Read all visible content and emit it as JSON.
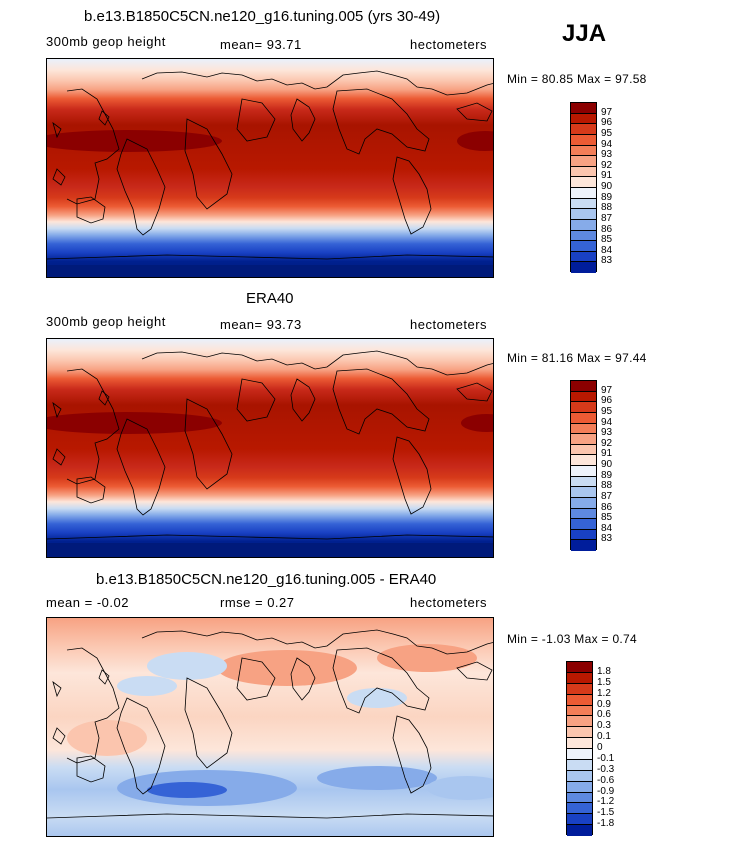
{
  "season": "JJA",
  "panels": [
    {
      "title": "b.e13.B1850C5CN.ne120_g16.tuning.005 (yrs 30-49)",
      "left_label": "300mb geop height",
      "mid_label": "mean=  93.71",
      "right_label": "hectometers",
      "minmax": "Min =  80.85 Max =  97.58"
    },
    {
      "title": "ERA40",
      "left_label": "300mb geop height",
      "mid_label": "mean=  93.73",
      "right_label": "hectometers",
      "minmax": "Min =  81.16 Max =  97.44"
    },
    {
      "title": "b.e13.B1850C5CN.ne120_g16.tuning.005 - ERA40",
      "left_label": "mean =  -0.02",
      "mid_label": "rmse =   0.27",
      "right_label": "hectometers",
      "minmax": "Min =  -1.03 Max =   0.74"
    }
  ],
  "colorbars": {
    "field": {
      "labels": [
        "97",
        "96",
        "95",
        "94",
        "93",
        "92",
        "91",
        "90",
        "89",
        "88",
        "87",
        "86",
        "85",
        "84",
        "83"
      ],
      "colors": [
        "#8b0000",
        "#b81800",
        "#d63a1a",
        "#ec5b34",
        "#f37e58",
        "#f7a283",
        "#fbc5ae",
        "#fde6da",
        "#eef3fb",
        "#c9dcf3",
        "#a9c6ef",
        "#86abe9",
        "#5e89e0",
        "#3563d6",
        "#1941c4",
        "#001d9b"
      ]
    },
    "diff": {
      "labels": [
        "1.8",
        "1.5",
        "1.2",
        "0.9",
        "0.6",
        "0.3",
        "0.1",
        "0",
        "-0.1",
        "-0.3",
        "-0.6",
        "-0.9",
        "-1.2",
        "-1.5",
        "-1.8"
      ],
      "colors": [
        "#8b0000",
        "#b81800",
        "#d63a1a",
        "#ec5b34",
        "#f37e58",
        "#f7a283",
        "#fbc5ae",
        "#fde6da",
        "#eef3fb",
        "#c9dcf3",
        "#a9c6ef",
        "#86abe9",
        "#5e89e0",
        "#3563d6",
        "#1941c4",
        "#001d9b"
      ]
    }
  },
  "chart_data": [
    {
      "type": "heatmap",
      "title": "b.e13.B1850C5CN.ne120_g16.tuning.005 (yrs 30-49)",
      "variable": "300mb geop height",
      "units": "hectometers",
      "season": "JJA",
      "mean": 93.71,
      "min": 80.85,
      "max": 97.58,
      "contour_levels": [
        83,
        84,
        85,
        86,
        87,
        88,
        89,
        90,
        91,
        92,
        93,
        94,
        95,
        96,
        97
      ]
    },
    {
      "type": "heatmap",
      "title": "ERA40",
      "variable": "300mb geop height",
      "units": "hectometers",
      "season": "JJA",
      "mean": 93.73,
      "min": 81.16,
      "max": 97.44,
      "contour_levels": [
        83,
        84,
        85,
        86,
        87,
        88,
        89,
        90,
        91,
        92,
        93,
        94,
        95,
        96,
        97
      ]
    },
    {
      "type": "heatmap",
      "title": "b.e13.B1850C5CN.ne120_g16.tuning.005 - ERA40",
      "units": "hectometers",
      "season": "JJA",
      "mean": -0.02,
      "rmse": 0.27,
      "min": -1.03,
      "max": 0.74,
      "contour_levels": [
        -1.8,
        -1.5,
        -1.2,
        -0.9,
        -0.6,
        -0.3,
        -0.1,
        0,
        0.1,
        0.3,
        0.6,
        0.9,
        1.2,
        1.5,
        1.8
      ]
    }
  ]
}
